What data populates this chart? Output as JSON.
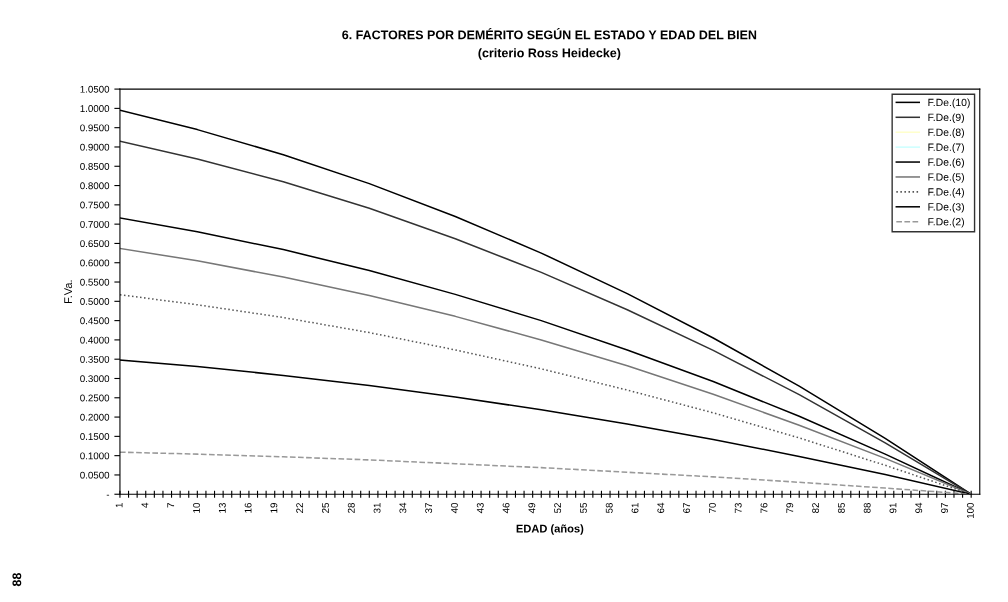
{
  "chart_data": {
    "type": "line",
    "title": "6. FACTORES POR DEMÉRITO SEGÚN EL ESTADO Y EDAD DEL BIEN",
    "subtitle": "(criterio Ross Heidecke)",
    "xlabel": "EDAD (años)",
    "ylabel": "F.Va.",
    "annotations": [
      "88"
    ],
    "x": [
      1,
      10,
      20,
      30,
      40,
      50,
      60,
      70,
      80,
      90,
      100
    ],
    "series": [
      {
        "name": "F.De.(10)",
        "color": "#000000",
        "line_style": "solid",
        "values": [
          0.995,
          0.945,
          0.88,
          0.805,
          0.72,
          0.625,
          0.52,
          0.405,
          0.28,
          0.145,
          0
        ]
      },
      {
        "name": "F.De.(9)",
        "color": "#333333",
        "line_style": "solid",
        "values": [
          0.915,
          0.869,
          0.81,
          0.741,
          0.662,
          0.575,
          0.478,
          0.373,
          0.258,
          0.133,
          0
        ]
      },
      {
        "name": "F.De.(8)",
        "color": "#ffffcc",
        "line_style": "solid",
        "values": [
          null,
          null,
          null,
          null,
          null,
          null,
          null,
          null,
          null,
          null,
          null
        ]
      },
      {
        "name": "F.De.(7)",
        "color": "#ccffff",
        "line_style": "solid",
        "values": [
          null,
          null,
          null,
          null,
          null,
          null,
          null,
          null,
          null,
          null,
          null
        ]
      },
      {
        "name": "F.De.(6)",
        "color": "#000000",
        "line_style": "solid",
        "values": [
          0.716,
          0.68,
          0.634,
          0.58,
          0.518,
          0.45,
          0.374,
          0.292,
          0.202,
          0.104,
          0
        ]
      },
      {
        "name": "F.De.(5)",
        "color": "#777777",
        "line_style": "solid",
        "values": [
          0.637,
          0.605,
          0.563,
          0.515,
          0.461,
          0.4,
          0.333,
          0.259,
          0.179,
          0.093,
          0
        ]
      },
      {
        "name": "F.De.(4)",
        "color": "#555555",
        "line_style": "dotted",
        "values": [
          0.517,
          0.491,
          0.458,
          0.419,
          0.374,
          0.325,
          0.27,
          0.211,
          0.146,
          0.075,
          0
        ]
      },
      {
        "name": "F.De.(3)",
        "color": "#000000",
        "line_style": "solid",
        "values": [
          0.348,
          0.331,
          0.308,
          0.282,
          0.252,
          0.219,
          0.182,
          0.142,
          0.098,
          0.051,
          0
        ]
      },
      {
        "name": "F.De.(2)",
        "color": "#999999",
        "line_style": "dashed",
        "values": [
          0.109,
          0.104,
          0.097,
          0.089,
          0.079,
          0.069,
          0.057,
          0.045,
          0.031,
          0.016,
          0
        ]
      }
    ],
    "xlim": [
      1,
      101
    ],
    "xticks": [
      1,
      {
        "value": 2,
        "label": null
      },
      {
        "value": 3,
        "label": null
      },
      4,
      {
        "value": 5,
        "label": null
      },
      {
        "value": 6,
        "label": null
      },
      7,
      {
        "value": 8,
        "label": null
      },
      {
        "value": 9,
        "label": null
      },
      10,
      {
        "value": 11,
        "label": null
      },
      {
        "value": 12,
        "label": null
      },
      13,
      {
        "value": 14,
        "label": null
      },
      {
        "value": 15,
        "label": null
      },
      16,
      {
        "value": 17,
        "label": null
      },
      {
        "value": 18,
        "label": null
      },
      19,
      {
        "value": 20,
        "label": null
      },
      {
        "value": 21,
        "label": null
      },
      22,
      {
        "value": 23,
        "label": null
      },
      {
        "value": 24,
        "label": null
      },
      25,
      {
        "value": 26,
        "label": null
      },
      {
        "value": 27,
        "label": null
      },
      28,
      {
        "value": 29,
        "label": null
      },
      {
        "value": 30,
        "label": null
      },
      31,
      {
        "value": 32,
        "label": null
      },
      {
        "value": 33,
        "label": null
      },
      34,
      {
        "value": 35,
        "label": null
      },
      {
        "value": 36,
        "label": null
      },
      37,
      {
        "value": 38,
        "label": null
      },
      {
        "value": 39,
        "label": null
      },
      40,
      {
        "value": 41,
        "label": null
      },
      {
        "value": 42,
        "label": null
      },
      43,
      {
        "value": 44,
        "label": null
      },
      {
        "value": 45,
        "label": null
      },
      46,
      {
        "value": 47,
        "label": null
      },
      {
        "value": 48,
        "label": null
      },
      49,
      {
        "value": 50,
        "label": null
      },
      {
        "value": 51,
        "label": null
      },
      52,
      {
        "value": 53,
        "label": null
      },
      {
        "value": 54,
        "label": null
      },
      55,
      {
        "value": 56,
        "label": null
      },
      {
        "value": 57,
        "label": null
      },
      58,
      {
        "value": 59,
        "label": null
      },
      {
        "value": 60,
        "label": null
      },
      61,
      {
        "value": 62,
        "label": null
      },
      {
        "value": 63,
        "label": null
      },
      64,
      {
        "value": 65,
        "label": null
      },
      {
        "value": 66,
        "label": null
      },
      67,
      {
        "value": 68,
        "label": null
      },
      {
        "value": 69,
        "label": null
      },
      70,
      {
        "value": 71,
        "label": null
      },
      {
        "value": 72,
        "label": null
      },
      73,
      {
        "value": 74,
        "label": null
      },
      {
        "value": 75,
        "label": null
      },
      76,
      {
        "value": 77,
        "label": null
      },
      {
        "value": 78,
        "label": null
      },
      79,
      {
        "value": 80,
        "label": null
      },
      {
        "value": 81,
        "label": null
      },
      82,
      {
        "value": 83,
        "label": null
      },
      {
        "value": 84,
        "label": null
      },
      85,
      {
        "value": 86,
        "label": null
      },
      {
        "value": 87,
        "label": null
      },
      88,
      {
        "value": 89,
        "label": null
      },
      {
        "value": 90,
        "label": null
      },
      91,
      {
        "value": 92,
        "label": null
      },
      {
        "value": 93,
        "label": null
      },
      94,
      {
        "value": 95,
        "label": null
      },
      {
        "value": 96,
        "label": null
      },
      97,
      {
        "value": 98,
        "label": null
      },
      {
        "value": 99,
        "label": null
      },
      100
    ],
    "ylim": [
      0,
      1.05
    ],
    "yticks": [
      {
        "value": 0,
        "label": "-"
      },
      {
        "value": 0.05,
        "label": "0.0500"
      },
      {
        "value": 0.1,
        "label": "0.1000"
      },
      {
        "value": 0.15,
        "label": "0.1500"
      },
      {
        "value": 0.2,
        "label": "0.2000"
      },
      {
        "value": 0.25,
        "label": "0.2500"
      },
      {
        "value": 0.3,
        "label": "0.3000"
      },
      {
        "value": 0.35,
        "label": "0.3500"
      },
      {
        "value": 0.4,
        "label": "0.4000"
      },
      {
        "value": 0.45,
        "label": "0.4500"
      },
      {
        "value": 0.5,
        "label": "0.5000"
      },
      {
        "value": 0.55,
        "label": "0.5500"
      },
      {
        "value": 0.6,
        "label": "0.6000"
      },
      {
        "value": 0.65,
        "label": "0.6500"
      },
      {
        "value": 0.7,
        "label": "0.7000"
      },
      {
        "value": 0.75,
        "label": "0.7500"
      },
      {
        "value": 0.8,
        "label": "0.8000"
      },
      {
        "value": 0.85,
        "label": "0.8500"
      },
      {
        "value": 0.9,
        "label": "0.9000"
      },
      {
        "value": 0.95,
        "label": "0.9500"
      },
      {
        "value": 1.0,
        "label": "1.0000"
      },
      {
        "value": 1.05,
        "label": "1.0500"
      }
    ],
    "grid": false,
    "legend": "top right",
    "marker": "none"
  }
}
